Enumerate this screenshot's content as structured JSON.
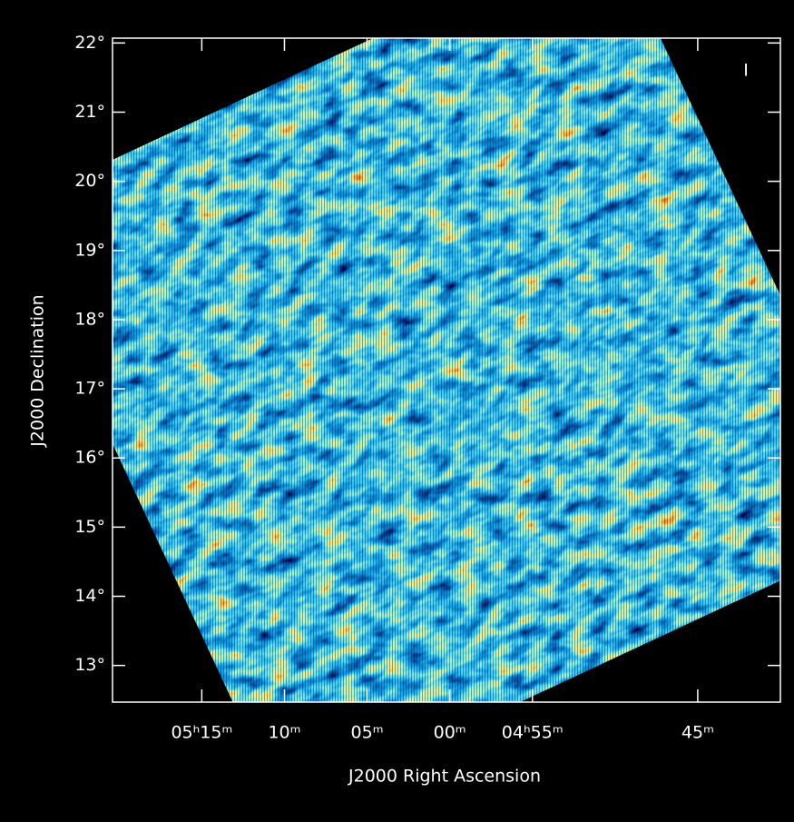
{
  "chart_data": {
    "type": "image",
    "xlabel": "J2000 Right Ascension",
    "ylabel": "J2000 Declination",
    "annotation": "I",
    "xlim": [
      320.4,
      280
    ],
    "ylim": [
      12.47,
      22.07
    ],
    "xticks": [
      {
        "value": 315,
        "label": "05ʰ15ᵐ"
      },
      {
        "value": 310,
        "label": "10ᵐ"
      },
      {
        "value": 305,
        "label": "05ᵐ"
      },
      {
        "value": 300,
        "label": "00ᵐ"
      },
      {
        "value": 295,
        "label": "04ʰ55ᵐ"
      },
      {
        "value": 285,
        "label": "45ᵐ"
      }
    ],
    "yticks": [
      {
        "value": 13,
        "label": "13°"
      },
      {
        "value": 14,
        "label": "14°"
      },
      {
        "value": 15,
        "label": "15°"
      },
      {
        "value": 16,
        "label": "16°"
      },
      {
        "value": 17,
        "label": "17°"
      },
      {
        "value": 18,
        "label": "18°"
      },
      {
        "value": 19,
        "label": "19°"
      },
      {
        "value": 20,
        "label": "20°"
      },
      {
        "value": 21,
        "label": "21°"
      },
      {
        "value": 22,
        "label": "22°"
      }
    ]
  }
}
